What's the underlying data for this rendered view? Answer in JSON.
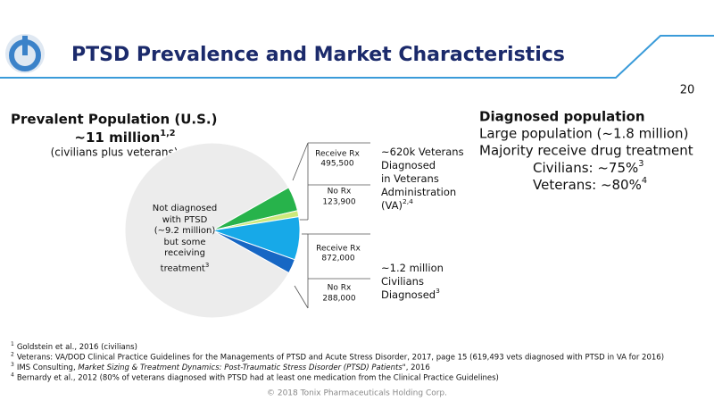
{
  "header": {
    "title": "PTSD Prevalence and Market Characteristics",
    "page": "20"
  },
  "left": {
    "heading": "Prevalent Population (U.S.)",
    "total": "~11 million",
    "total_sup": "1,2",
    "note": "(civilians plus veterans)"
  },
  "chart_data": {
    "type": "pie",
    "categories": [
      "Not diagnosed with PTSD",
      "Receive Rx",
      "No Rx",
      "Receive Rx",
      "No Rx"
    ],
    "values": [
      9200000,
      495500,
      123900,
      872000,
      288000
    ],
    "value_labels": [
      "(~9.2 million)",
      "495,500",
      "123,900",
      "872,000",
      "288,000"
    ],
    "colors": [
      "#ececec",
      "#27b34b",
      "#cde97a",
      "#17a9e8",
      "#1767c4"
    ],
    "slice_note": {
      "text": "but some receiving treatment",
      "sup": "3"
    },
    "annotations": [
      {
        "lines": [
          "~620k Veterans",
          "Diagnosed",
          "in Veterans",
          "Administration",
          "(VA)"
        ],
        "sup": "2,4"
      },
      {
        "lines": [
          "~1.2 million",
          "Civilians",
          "Diagnosed"
        ],
        "sup": "3"
      }
    ]
  },
  "right": {
    "heading": "Diagnosed population",
    "lines": [
      "Large population (~1.8 million)",
      "Majority receive drug treatment"
    ],
    "civilians": "Civilians: ~75%",
    "civilians_sup": "3",
    "veterans": "Veterans: ~80%",
    "veterans_sup": "4"
  },
  "footnotes": [
    {
      "num": "1",
      "text": "Goldstein et al., 2016 (civilians)"
    },
    {
      "num": "2",
      "text": "Veterans: VA/DOD Clinical Practice Guidelines for the Managements of PTSD and Acute Stress Disorder, 2017, page 15 (619,493 vets diagnosed with PTSD in VA for 2016)"
    },
    {
      "num": "3",
      "text": "IMS Consulting, ",
      "italic": "Market Sizing & Treatment Dynamics: Post-Traumatic Stress Disorder (PTSD) Patients",
      "rest": "\", 2016"
    },
    {
      "num": "4",
      "text": "Bernardy et al., 2012 (80% of veterans diagnosed with PTSD had at least one medication from the Clinical Practice Guidelines)"
    }
  ],
  "copyright": "© 2018 Tonix Pharmaceuticals Holding Corp."
}
